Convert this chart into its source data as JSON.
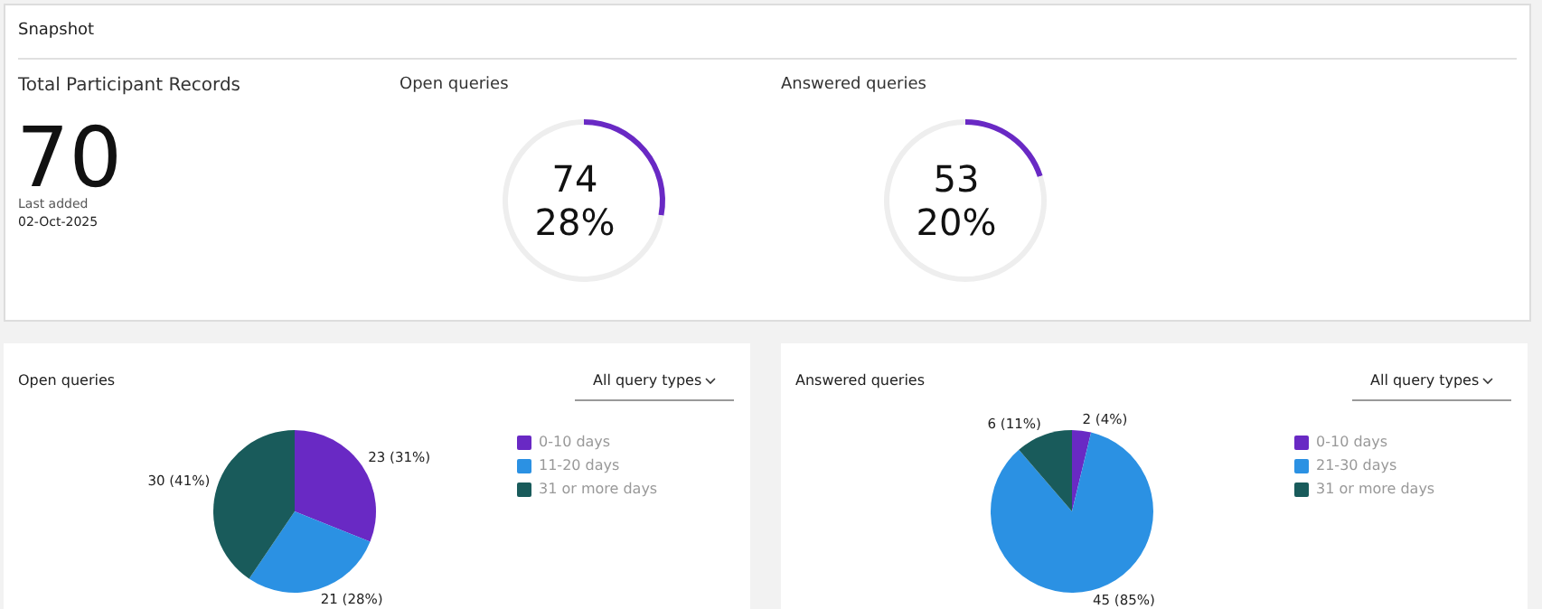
{
  "chart_data": [
    {
      "type": "other",
      "title": "Snapshot",
      "subtitle": "Total Participant Records",
      "annotations": [
        "70",
        "Last added",
        "02-Oct-2025"
      ]
    },
    {
      "type": "donut",
      "title": "Open queries",
      "categories": [
        null,
        null
      ],
      "values": [
        28,
        72
      ],
      "colors": [
        "#6929c4",
        "#eeeeee"
      ],
      "annotations": [
        "74",
        "28%"
      ],
      "legend": false
    },
    {
      "type": "donut",
      "title": "Answered queries",
      "categories": [
        null,
        null
      ],
      "values": [
        20,
        80
      ],
      "colors": [
        "#6929c4",
        "#eeeeee"
      ],
      "annotations": [
        "53",
        "20%"
      ],
      "legend": false
    },
    {
      "type": "pie",
      "title": "Open queries",
      "categories": [
        "0-10 days",
        "11-20 days",
        "31 or more days"
      ],
      "values": [
        23,
        21,
        30
      ],
      "colors": [
        "#6929c4",
        "#2b91e3",
        "#195b5b"
      ],
      "value_labels": [
        "23 (31%)",
        "21 (28%)",
        "30 (41%)"
      ],
      "legend": "right",
      "annotations": [
        "All query types"
      ]
    },
    {
      "type": "pie",
      "title": "Answered queries",
      "categories": [
        "0-10 days",
        "21-30 days",
        "31 or more days"
      ],
      "values": [
        2,
        45,
        6
      ],
      "colors": [
        "#6929c4",
        "#2b91e3",
        "#195b5b"
      ],
      "value_labels": [
        "2 (4%)",
        "45 (85%)",
        "6 (11%)"
      ],
      "legend": "right",
      "annotations": [
        "All query types"
      ]
    }
  ]
}
